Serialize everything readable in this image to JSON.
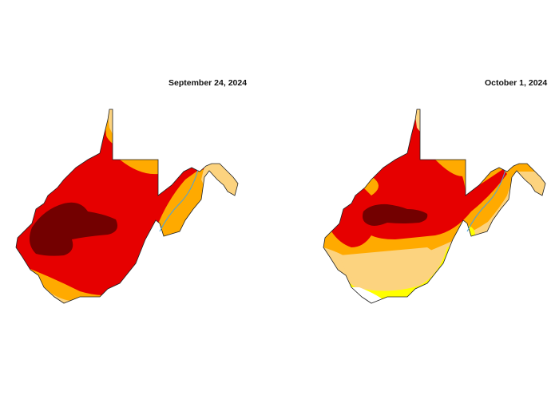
{
  "maps": [
    {
      "title": "September 24, 2024"
    },
    {
      "title": "October 1, 2024"
    }
  ],
  "colors": {
    "none": "#ffffff",
    "D0": "#ffff00",
    "D1": "#fcd37f",
    "D2": "#ffaa00",
    "D3": "#e60000",
    "D4": "#730000",
    "river": "#4aa3df",
    "border": "#222222"
  }
}
